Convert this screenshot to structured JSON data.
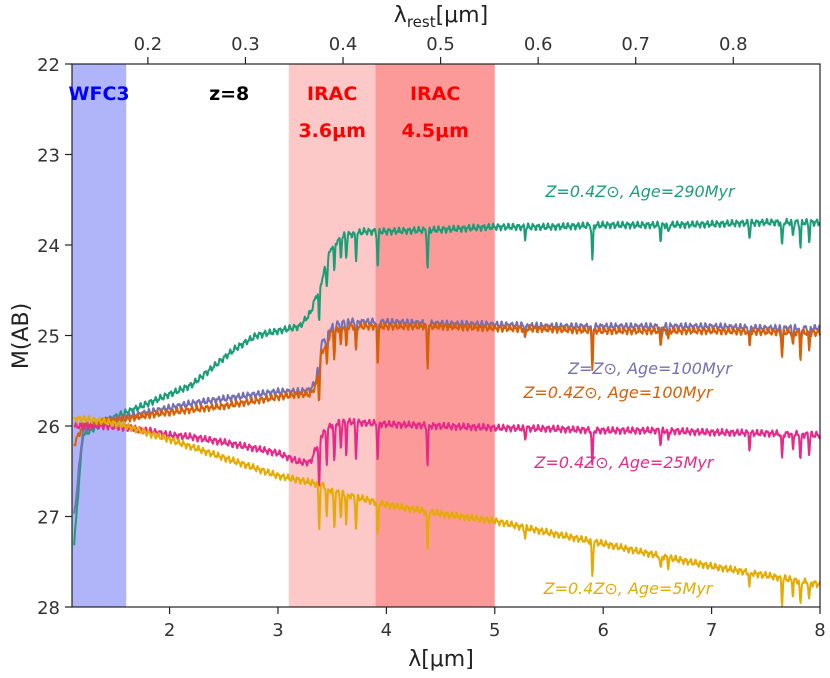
{
  "chart_data": {
    "type": "line",
    "x_axis": {
      "label": "λ[μm]",
      "range": [
        1.1,
        8.0
      ],
      "ticks": [
        2,
        3,
        4,
        5,
        6,
        7,
        8
      ],
      "tick_labels": [
        "2",
        "3",
        "4",
        "5",
        "6",
        "7",
        "8"
      ]
    },
    "top_axis": {
      "label": "λrest[μm]",
      "label_main": "λ",
      "label_sub": "rest",
      "label_tail": "[μm]",
      "redshift": 8,
      "ticks": [
        0.2,
        0.3,
        0.4,
        0.5,
        0.6,
        0.7,
        0.8
      ],
      "tick_labels": [
        "0.2",
        "0.3",
        "0.4",
        "0.5",
        "0.6",
        "0.7",
        "0.8"
      ]
    },
    "y_axis": {
      "label": "M(AB)",
      "range": [
        22,
        28
      ],
      "inverted": true,
      "ticks": [
        22,
        23,
        24,
        25,
        26,
        27,
        28
      ],
      "tick_labels": [
        "22",
        "23",
        "24",
        "25",
        "26",
        "27",
        "28"
      ]
    },
    "bands": [
      {
        "name": "WFC3",
        "lines": [
          "WFC3"
        ],
        "x_range": [
          1.1,
          1.6
        ],
        "color": "#b0b4f8",
        "text_color": "#0000ff"
      },
      {
        "name": "IRAC 3.6μm",
        "lines": [
          "IRAC",
          "3.6μm"
        ],
        "x_range": [
          3.1,
          3.9
        ],
        "color": "#fcc8c8",
        "text_color": "#ff0000"
      },
      {
        "name": "IRAC 4.5μm",
        "lines": [
          "IRAC",
          "4.5μm"
        ],
        "x_range": [
          3.9,
          5.0
        ],
        "color": "#fc9a9a",
        "text_color": "#ff0000"
      }
    ],
    "annotation": {
      "text": "z=8",
      "color": "#000000"
    },
    "series": [
      {
        "name": "Z=0.4Z⊙, Age=290Myr",
        "color": "#1b9e77",
        "x": [
          1.12,
          1.2,
          1.4,
          1.6,
          1.8,
          2.0,
          2.2,
          2.4,
          2.6,
          2.8,
          3.0,
          3.2,
          3.3,
          3.4,
          3.5,
          3.6,
          3.8,
          4.0,
          4.5,
          5.0,
          5.5,
          6.0,
          6.5,
          7.0,
          7.5,
          8.0
        ],
        "values": [
          27.3,
          26.1,
          25.95,
          25.85,
          25.75,
          25.65,
          25.55,
          25.35,
          25.15,
          25.0,
          24.95,
          24.9,
          24.75,
          24.4,
          24.0,
          23.9,
          23.85,
          23.85,
          23.83,
          23.8,
          23.8,
          23.78,
          23.78,
          23.77,
          23.75,
          23.75
        ]
      },
      {
        "name": "Z=Z⊙, Age=100Myr",
        "color": "#7570b3",
        "x": [
          1.12,
          1.2,
          1.4,
          1.6,
          1.8,
          2.0,
          2.2,
          2.5,
          2.8,
          3.0,
          3.2,
          3.3,
          3.35,
          3.4,
          3.5,
          3.6,
          4.0,
          4.5,
          5.0,
          5.5,
          6.0,
          6.5,
          7.0,
          7.5,
          8.0
        ],
        "values": [
          27.0,
          26.05,
          25.95,
          25.9,
          25.85,
          25.8,
          25.75,
          25.7,
          25.65,
          25.62,
          25.62,
          25.6,
          25.5,
          25.1,
          24.9,
          24.85,
          24.85,
          24.87,
          24.88,
          24.9,
          24.9,
          24.9,
          24.9,
          24.92,
          24.92
        ]
      },
      {
        "name": "Z=0.4Z⊙, Age=100Myr",
        "color": "#d95f02",
        "x": [
          1.12,
          1.2,
          1.4,
          1.6,
          1.8,
          2.0,
          2.2,
          2.5,
          2.8,
          3.0,
          3.2,
          3.3,
          3.35,
          3.4,
          3.5,
          3.6,
          4.0,
          4.5,
          5.0,
          5.5,
          6.0,
          6.5,
          7.0,
          7.5,
          8.0
        ],
        "values": [
          26.2,
          26.0,
          25.95,
          25.92,
          25.88,
          25.85,
          25.82,
          25.78,
          25.72,
          25.68,
          25.65,
          25.65,
          25.55,
          25.2,
          24.95,
          24.9,
          24.9,
          24.9,
          24.92,
          24.93,
          24.95,
          24.95,
          24.95,
          24.96,
          24.97
        ]
      },
      {
        "name": "Z=0.4Z⊙, Age=25Myr",
        "color": "#e7298a",
        "x": [
          1.12,
          1.2,
          1.4,
          1.6,
          1.8,
          2.0,
          2.2,
          2.5,
          2.8,
          3.0,
          3.2,
          3.3,
          3.4,
          3.5,
          3.6,
          4.0,
          4.5,
          5.0,
          5.5,
          6.0,
          6.5,
          7.0,
          7.5,
          8.0
        ],
        "values": [
          26.0,
          26.0,
          26.0,
          26.02,
          26.05,
          26.1,
          26.12,
          26.18,
          26.25,
          26.3,
          26.4,
          26.4,
          26.1,
          25.98,
          25.95,
          25.98,
          26.0,
          26.02,
          26.03,
          26.05,
          26.05,
          26.07,
          26.08,
          26.1
        ]
      },
      {
        "name": "Z=0.4Z⊙, Age=5Myr",
        "color": "#e6ab02",
        "x": [
          1.12,
          1.2,
          1.4,
          1.6,
          1.8,
          2.0,
          2.5,
          3.0,
          3.2,
          3.4,
          3.5,
          4.0,
          4.5,
          5.0,
          5.5,
          6.0,
          6.5,
          7.0,
          7.5,
          8.0
        ],
        "values": [
          25.92,
          25.92,
          25.95,
          26.0,
          26.08,
          26.15,
          26.35,
          26.55,
          26.6,
          26.65,
          26.72,
          26.87,
          26.97,
          27.05,
          27.18,
          27.3,
          27.43,
          27.55,
          27.65,
          27.75
        ]
      }
    ]
  }
}
